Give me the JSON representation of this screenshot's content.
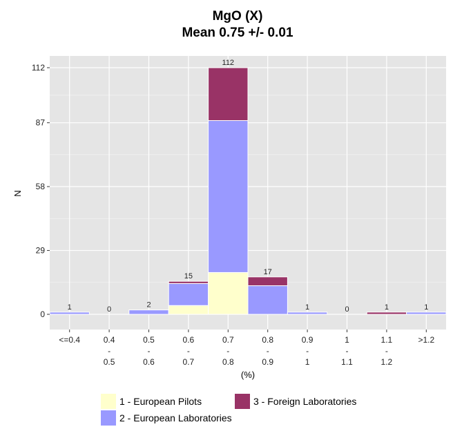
{
  "chart_data": {
    "type": "bar",
    "stacked": true,
    "title": "MgO (X)",
    "subtitle": "Mean 0.75 +/- 0.01",
    "xlabel": "(%)",
    "ylabel": "N",
    "ylim": [
      0,
      112
    ],
    "yticks": [
      0,
      29,
      58,
      87,
      112
    ],
    "categories": [
      [
        "<=0.4"
      ],
      [
        "0.4",
        "-",
        "0.5"
      ],
      [
        "0.5",
        "-",
        "0.6"
      ],
      [
        "0.6",
        "-",
        "0.7"
      ],
      [
        "0.7",
        "-",
        "0.8"
      ],
      [
        "0.8",
        "-",
        "0.9"
      ],
      [
        "0.9",
        "-",
        "1"
      ],
      [
        "1",
        "-",
        "1.1"
      ],
      [
        "1.1",
        "-",
        "1.2"
      ],
      [
        ">1.2"
      ]
    ],
    "series": [
      {
        "name": "1 - European Pilots",
        "color": "#FFFFCC",
        "values": [
          0,
          0,
          0,
          4,
          19,
          0,
          0,
          0,
          0,
          0
        ]
      },
      {
        "name": "2 - European Laboratories",
        "color": "#9999FF",
        "values": [
          1,
          0,
          2,
          10,
          69,
          13,
          1,
          0,
          0,
          1
        ]
      },
      {
        "name": "3 - Foreign Laboratories",
        "color": "#993366",
        "values": [
          0,
          0,
          0,
          1,
          24,
          4,
          0,
          0,
          1,
          0
        ]
      }
    ],
    "totals": [
      1,
      0,
      2,
      15,
      112,
      17,
      1,
      0,
      1,
      1
    ],
    "grid": true,
    "background": "#E5E5E5",
    "legend_position": "bottom"
  }
}
